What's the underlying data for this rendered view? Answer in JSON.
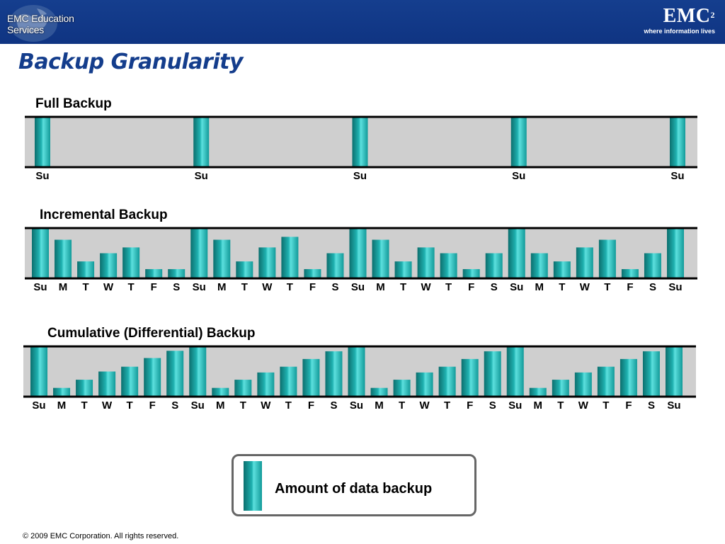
{
  "header": {
    "edu_logo_text": "EMC Education Services",
    "brand_mark": "EMC",
    "brand_superscript": "2",
    "brand_tagline": "where information lives"
  },
  "slide": {
    "title": "Backup Granularity"
  },
  "colors": {
    "header_bg": "#153e8e",
    "band_bg": "#cfcfcf",
    "bar_teal": "#1fb1b0",
    "title_blue": "#143d8c"
  },
  "chart_data": [
    {
      "type": "bar",
      "title": "Full Backup",
      "categories": [
        "Su",
        "Su",
        "Su",
        "Su",
        "Su"
      ],
      "values": [
        1,
        1,
        1,
        1,
        1
      ],
      "ylim": [
        0,
        1
      ],
      "grid": false
    },
    {
      "type": "bar",
      "title": "Incremental Backup",
      "categories": [
        "Su",
        "M",
        "T",
        "W",
        "T",
        "F",
        "S",
        "Su",
        "M",
        "T",
        "W",
        "T",
        "F",
        "S",
        "Su",
        "M",
        "T",
        "W",
        "T",
        "F",
        "S",
        "Su",
        "M",
        "T",
        "W",
        "T",
        "F",
        "S",
        "Su"
      ],
      "values": [
        1,
        0.78,
        0.33,
        0.5,
        0.62,
        0.17,
        0.17,
        1,
        0.78,
        0.33,
        0.62,
        0.84,
        0.17,
        0.5,
        1,
        0.78,
        0.33,
        0.62,
        0.5,
        0.17,
        0.5,
        1,
        0.5,
        0.33,
        0.62,
        0.78,
        0.17,
        0.5,
        1
      ],
      "ylim": [
        0,
        1
      ],
      "grid": false
    },
    {
      "type": "bar",
      "title": "Cumulative (Differential) Backup",
      "categories": [
        "Su",
        "M",
        "T",
        "W",
        "T",
        "F",
        "S",
        "Su",
        "M",
        "T",
        "W",
        "T",
        "F",
        "S",
        "Su",
        "M",
        "T",
        "W",
        "T",
        "F",
        "S",
        "Su",
        "M",
        "T",
        "W",
        "T",
        "F",
        "S",
        "Su"
      ],
      "values": [
        1,
        0.16,
        0.33,
        0.5,
        0.6,
        0.78,
        0.93,
        1,
        0.16,
        0.33,
        0.48,
        0.6,
        0.76,
        0.92,
        1,
        0.16,
        0.33,
        0.48,
        0.6,
        0.76,
        0.92,
        1,
        0.16,
        0.33,
        0.48,
        0.6,
        0.76,
        0.92,
        1
      ],
      "ylim": [
        0,
        1
      ],
      "grid": false
    }
  ],
  "legend": {
    "label": "Amount of data backup"
  },
  "footer": {
    "copyright": "© 2009 EMC Corporation. All rights reserved."
  }
}
